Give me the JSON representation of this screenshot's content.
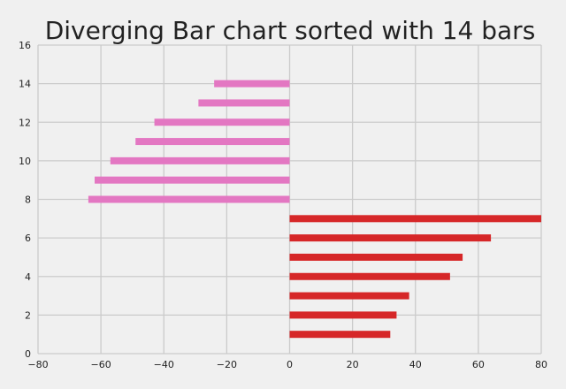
{
  "chart_data": {
    "type": "bar",
    "orientation": "horizontal",
    "title": "Diverging Bar chart sorted with 14 bars",
    "xlabel": "",
    "ylabel": "",
    "xlim": [
      -80,
      80
    ],
    "ylim": [
      0,
      16
    ],
    "xticks": [
      -80,
      -60,
      -40,
      -20,
      0,
      20,
      40,
      60,
      80
    ],
    "yticks": [
      0,
      2,
      4,
      6,
      8,
      10,
      12,
      14,
      16
    ],
    "grid": true,
    "colors": {
      "positive": "#d62728",
      "negative": "#e377c2",
      "background": "#f0f0f0",
      "grid": "#cbcbcb"
    },
    "bars": [
      {
        "y": 1,
        "value": 32
      },
      {
        "y": 2,
        "value": 34
      },
      {
        "y": 3,
        "value": 38
      },
      {
        "y": 4,
        "value": 51
      },
      {
        "y": 5,
        "value": 55
      },
      {
        "y": 6,
        "value": 64
      },
      {
        "y": 7,
        "value": 80
      },
      {
        "y": 8,
        "value": -64
      },
      {
        "y": 9,
        "value": -62
      },
      {
        "y": 10,
        "value": -57
      },
      {
        "y": 11,
        "value": -49
      },
      {
        "y": 12,
        "value": -43
      },
      {
        "y": 13,
        "value": -29
      },
      {
        "y": 14,
        "value": -24
      }
    ]
  }
}
